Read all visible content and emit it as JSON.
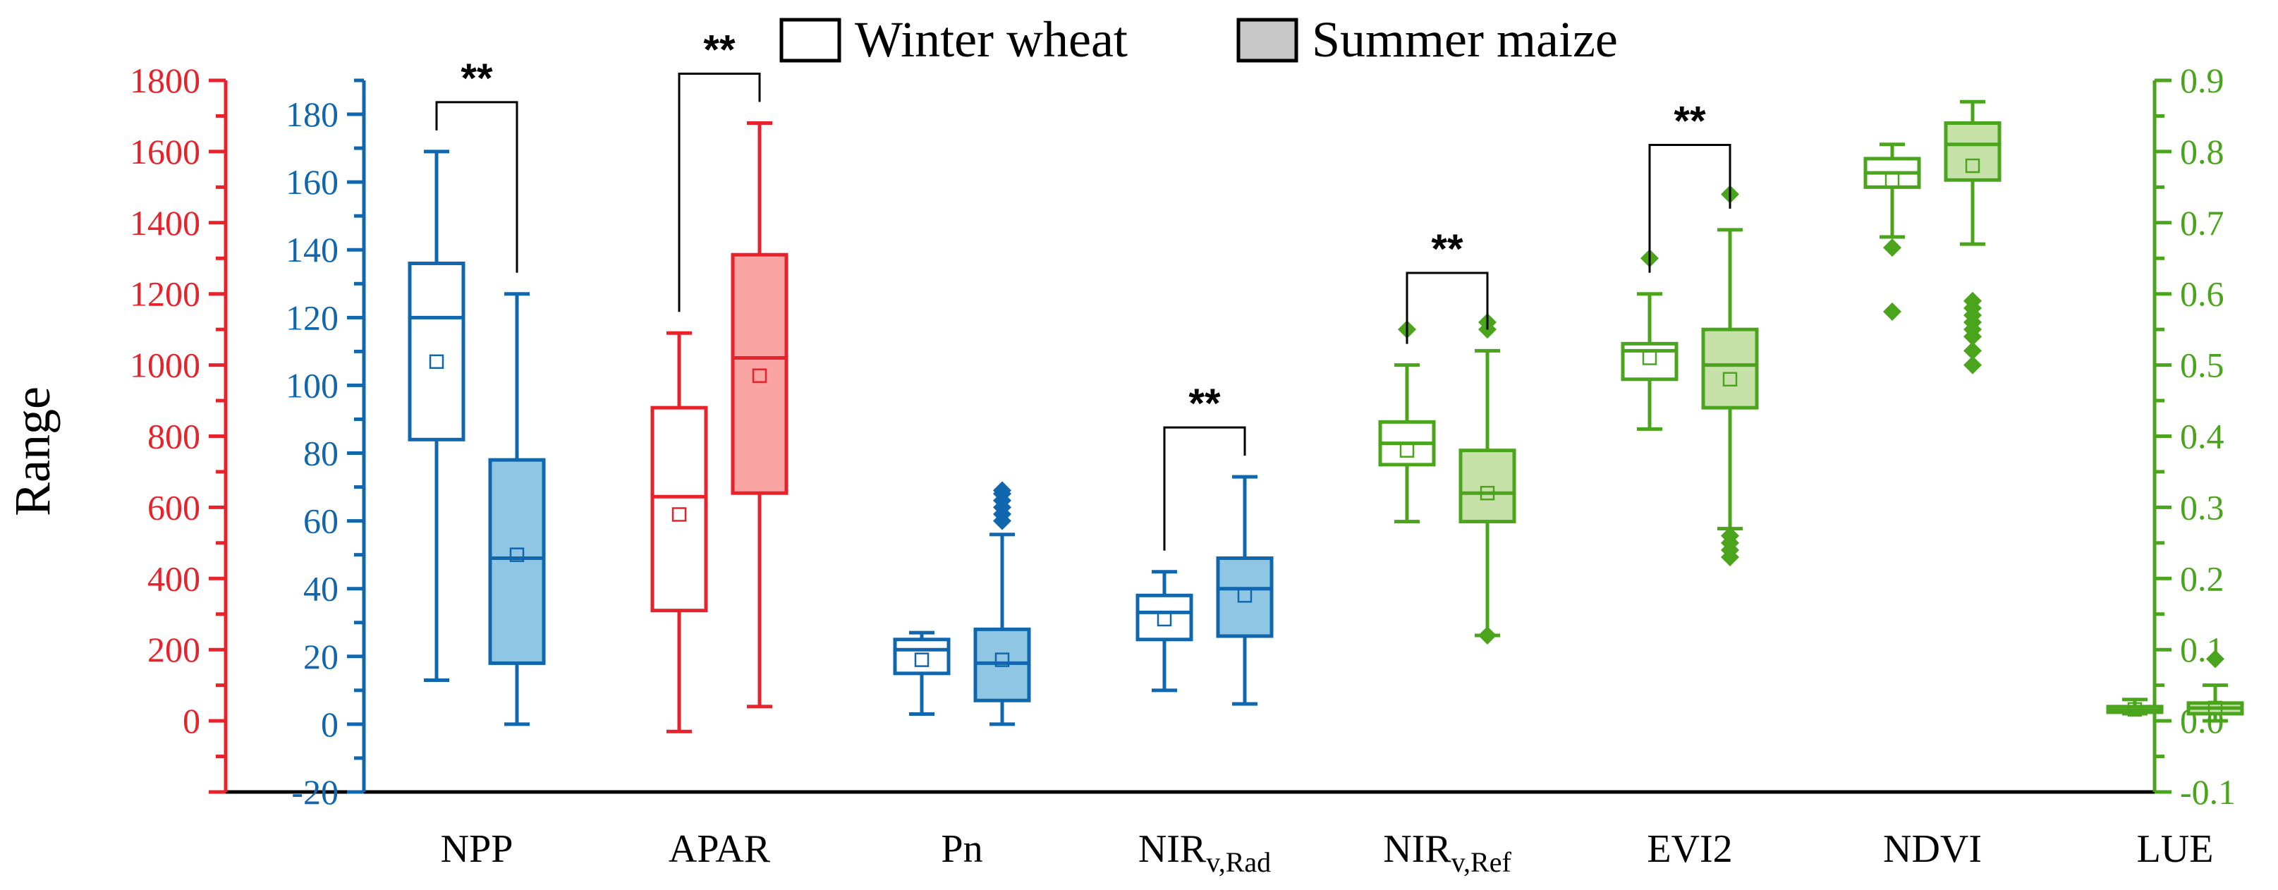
{
  "chart_data": {
    "type": "box",
    "ylabel": "Range",
    "legend": [
      {
        "name": "Winter wheat",
        "style": "open"
      },
      {
        "name": "Summer maize",
        "style": "filled"
      }
    ],
    "axes": {
      "red": {
        "range": [
          -200,
          1800
        ],
        "ticks": [
          0,
          200,
          400,
          600,
          800,
          1000,
          1200,
          1400,
          1600,
          1800
        ],
        "color": "#e8222b"
      },
      "blue": {
        "range": [
          -20,
          190
        ],
        "ticks": [
          -20,
          0,
          20,
          40,
          60,
          80,
          100,
          120,
          140,
          160,
          180
        ],
        "color": "#1167ad"
      },
      "green": {
        "range": [
          -0.1,
          0.9
        ],
        "ticks": [
          "-0.1",
          "0.0",
          "0.1",
          "0.2",
          "0.3",
          "0.4",
          "0.5",
          "0.6",
          "0.7",
          "0.8",
          "0.9"
        ],
        "color": "#4aa51c"
      }
    },
    "categories": [
      {
        "label": "NPP",
        "sub": "",
        "axis": "blue",
        "sig": "**",
        "boxes": [
          {
            "series": "Winter wheat",
            "whisker_low": 13,
            "q1": 84,
            "median": 120,
            "q3": 136,
            "whisker_high": 169,
            "mean": 107,
            "outliers": []
          },
          {
            "series": "Summer maize",
            "whisker_low": 0,
            "q1": 18,
            "median": 49,
            "q3": 78,
            "whisker_high": 127,
            "mean": 50,
            "outliers": []
          }
        ]
      },
      {
        "label": "APAR",
        "sub": "",
        "axis": "red",
        "sig": "**",
        "boxes": [
          {
            "series": "Winter wheat",
            "whisker_low": -30,
            "q1": 310,
            "median": 630,
            "q3": 880,
            "whisker_high": 1090,
            "mean": 580,
            "outliers": []
          },
          {
            "series": "Summer maize",
            "whisker_low": 40,
            "q1": 640,
            "median": 1020,
            "q3": 1310,
            "whisker_high": 1680,
            "mean": 970,
            "outliers": []
          }
        ]
      },
      {
        "label": "Pn",
        "sub": "",
        "axis": "blue",
        "sig": "",
        "boxes": [
          {
            "series": "Winter wheat",
            "whisker_low": 3,
            "q1": 15,
            "median": 22,
            "q3": 25,
            "whisker_high": 27,
            "mean": 19,
            "outliers": []
          },
          {
            "series": "Summer maize",
            "whisker_low": 0,
            "q1": 7,
            "median": 18,
            "q3": 28,
            "whisker_high": 56,
            "mean": 19,
            "outliers": [
              60,
              62,
              64,
              66,
              68,
              69
            ]
          }
        ]
      },
      {
        "label": "NIR",
        "sub": "v,Rad",
        "axis": "blue",
        "sig": "**",
        "boxes": [
          {
            "series": "Winter wheat",
            "whisker_low": 10,
            "q1": 25,
            "median": 33,
            "q3": 38,
            "whisker_high": 45,
            "mean": 31,
            "outliers": []
          },
          {
            "series": "Summer maize",
            "whisker_low": 6,
            "q1": 26,
            "median": 40,
            "q3": 49,
            "whisker_high": 73,
            "mean": 38,
            "outliers": []
          }
        ]
      },
      {
        "label": "NIR",
        "sub": "v,Ref",
        "axis": "green",
        "sig": "**",
        "boxes": [
          {
            "series": "Winter wheat",
            "whisker_low": 0.28,
            "q1": 0.36,
            "median": 0.39,
            "q3": 0.42,
            "whisker_high": 0.5,
            "mean": 0.38,
            "outliers": [
              0.55
            ]
          },
          {
            "series": "Summer maize",
            "whisker_low": 0.12,
            "q1": 0.28,
            "median": 0.32,
            "q3": 0.38,
            "whisker_high": 0.52,
            "mean": 0.32,
            "outliers": [
              0.12,
              0.55,
              0.56
            ]
          }
        ]
      },
      {
        "label": "EVI2",
        "sub": "",
        "axis": "green",
        "sig": "**",
        "boxes": [
          {
            "series": "Winter wheat",
            "whisker_low": 0.41,
            "q1": 0.48,
            "median": 0.52,
            "q3": 0.53,
            "whisker_high": 0.6,
            "mean": 0.51,
            "outliers": [
              0.65
            ]
          },
          {
            "series": "Summer maize",
            "whisker_low": 0.27,
            "q1": 0.44,
            "median": 0.5,
            "q3": 0.55,
            "whisker_high": 0.69,
            "mean": 0.48,
            "outliers": [
              0.23,
              0.24,
              0.25,
              0.26,
              0.74
            ]
          }
        ]
      },
      {
        "label": "NDVI",
        "sub": "",
        "axis": "green",
        "sig": "",
        "boxes": [
          {
            "series": "Winter wheat",
            "whisker_low": 0.68,
            "q1": 0.75,
            "median": 0.77,
            "q3": 0.79,
            "whisker_high": 0.81,
            "mean": 0.76,
            "outliers": [
              0.575,
              0.665
            ]
          },
          {
            "series": "Summer maize",
            "whisker_low": 0.67,
            "q1": 0.76,
            "median": 0.81,
            "q3": 0.84,
            "whisker_high": 0.87,
            "mean": 0.78,
            "outliers": [
              0.5,
              0.52,
              0.54,
              0.55,
              0.56,
              0.57,
              0.58,
              0.59
            ]
          }
        ]
      },
      {
        "label": "LUE",
        "sub": "",
        "axis": "green",
        "sig": "",
        "boxes": [
          {
            "series": "Winter wheat",
            "whisker_low": 0.01,
            "q1": 0.012,
            "median": 0.015,
            "q3": 0.02,
            "whisker_high": 0.03,
            "mean": 0.016,
            "outliers": []
          },
          {
            "series": "Summer maize",
            "whisker_low": 0.0,
            "q1": 0.01,
            "median": 0.018,
            "q3": 0.025,
            "whisker_high": 0.05,
            "mean": 0.018,
            "outliers": [
              0.087
            ]
          }
        ]
      }
    ]
  }
}
